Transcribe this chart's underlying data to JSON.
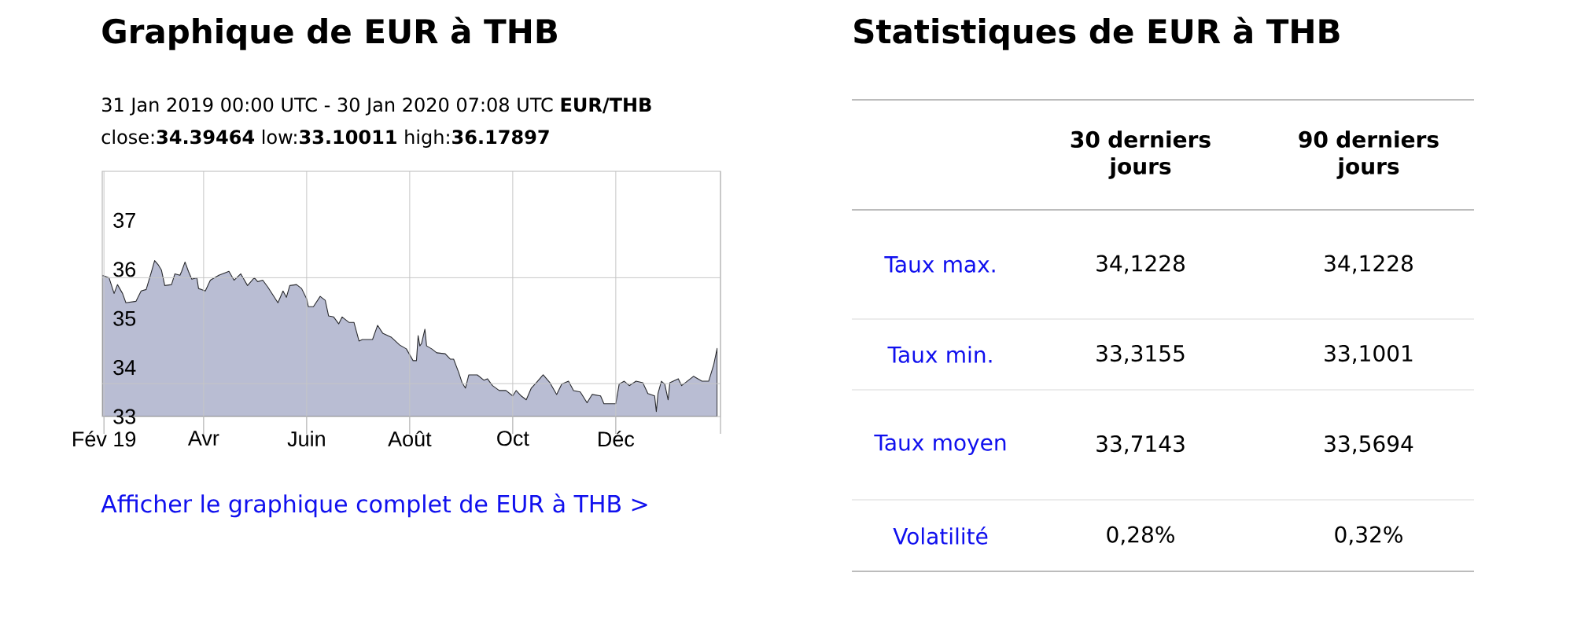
{
  "chart_data": [
    {
      "type": "area",
      "title": "Graphique de EUR à THB",
      "subtitle": "31 Jan 2019 00:00 UTC - 30 Jan 2020 07:08 UTC   **EUR/THB**",
      "annotations": [
        "close:**34.39464** low:**33.10011** high:**36.17897**",
        "Afficher le graphique complet de EUR à THB >"
      ],
      "x": [
        "2019-01-31",
        "2019-02-04",
        "2019-02-07",
        "2019-02-09",
        "2019-02-12",
        "2019-02-14",
        "2019-02-20",
        "2019-02-23",
        "2019-02-26",
        "2019-03-01",
        "2019-03-03",
        "2019-03-05",
        "2019-03-07",
        "2019-03-09",
        "2019-03-13",
        "2019-03-15",
        "2019-03-18",
        "2019-03-19",
        "2019-03-21",
        "2019-03-23",
        "2019-03-25",
        "2019-03-28",
        "2019-03-29",
        "2019-04-02",
        "2019-04-05",
        "2019-04-10",
        "2019-04-16",
        "2019-04-19",
        "2019-04-23",
        "2019-04-27",
        "2019-05-01",
        "2019-05-03",
        "2019-05-06",
        "2019-05-09",
        "2019-05-12",
        "2019-05-15",
        "2019-05-18",
        "2019-05-20",
        "2019-05-22",
        "2019-05-26",
        "2019-05-29",
        "2019-06-01",
        "2019-06-02",
        "2019-06-05",
        "2019-06-09",
        "2019-06-12",
        "2019-06-14",
        "2019-06-17",
        "2019-06-20",
        "2019-06-22",
        "2019-06-26",
        "2019-06-29",
        "2019-07-02",
        "2019-07-04",
        "2019-07-10",
        "2019-07-13",
        "2019-07-16",
        "2019-07-21",
        "2019-07-26",
        "2019-07-30",
        "2019-08-03",
        "2019-08-05",
        "2019-08-06",
        "2019-08-07",
        "2019-08-08",
        "2019-08-10",
        "2019-08-11",
        "2019-08-14",
        "2019-08-17",
        "2019-08-22",
        "2019-08-25",
        "2019-08-27",
        "2019-08-30",
        "2019-09-01",
        "2019-09-03",
        "2019-09-05",
        "2019-09-10",
        "2019-09-14",
        "2019-09-16",
        "2019-09-19",
        "2019-09-23",
        "2019-09-27",
        "2019-10-01",
        "2019-10-03",
        "2019-10-06",
        "2019-10-09",
        "2019-10-12",
        "2019-10-15",
        "2019-10-19",
        "2019-10-23",
        "2019-10-27",
        "2019-10-30",
        "2019-11-03",
        "2019-11-06",
        "2019-11-10",
        "2019-11-14",
        "2019-11-17",
        "2019-11-22",
        "2019-11-24",
        "2019-12-01",
        "2019-12-03",
        "2019-12-06",
        "2019-12-09",
        "2019-12-13",
        "2019-12-17",
        "2019-12-20",
        "2019-12-24",
        "2019-12-25",
        "2019-12-26",
        "2019-12-28",
        "2019-12-30",
        "2020-01-01",
        "2020-01-02",
        "2020-01-07",
        "2020-01-09",
        "2020-01-16",
        "2020-01-21",
        "2020-01-25",
        "2020-01-28",
        "2020-01-30"
      ],
      "series": [
        {
          "color": "#b9bdd3",
          "values": [
            35.88,
            35.83,
            35.51,
            35.69,
            35.51,
            35.32,
            35.35,
            35.56,
            35.59,
            35.94,
            36.18,
            36.1,
            35.99,
            35.67,
            35.69,
            35.91,
            35.88,
            35.96,
            36.15,
            35.96,
            35.8,
            35.83,
            35.61,
            35.56,
            35.78,
            35.88,
            35.96,
            35.78,
            35.91,
            35.67,
            35.83,
            35.75,
            35.78,
            35.64,
            35.48,
            35.32,
            35.56,
            35.43,
            35.67,
            35.69,
            35.61,
            35.4,
            35.24,
            35.24,
            35.45,
            35.37,
            35.05,
            35.03,
            34.89,
            35.03,
            34.92,
            34.92,
            34.54,
            34.57,
            34.57,
            34.86,
            34.7,
            34.62,
            34.46,
            34.38,
            34.14,
            34.14,
            34.65,
            34.44,
            34.49,
            34.78,
            34.44,
            34.38,
            34.3,
            34.28,
            34.17,
            34.17,
            33.9,
            33.69,
            33.58,
            33.85,
            33.85,
            33.74,
            33.77,
            33.63,
            33.53,
            33.53,
            33.42,
            33.53,
            33.42,
            33.34,
            33.58,
            33.69,
            33.85,
            33.69,
            33.45,
            33.66,
            33.72,
            33.53,
            33.5,
            33.28,
            33.45,
            33.42,
            33.26,
            33.26,
            33.66,
            33.72,
            33.63,
            33.72,
            33.69,
            33.47,
            33.42,
            33.1,
            33.47,
            33.72,
            33.66,
            33.34,
            33.69,
            33.77,
            33.63,
            33.82,
            33.72,
            33.72,
            34.06,
            34.39
          ]
        }
      ],
      "xlim": [
        "2019-01-31",
        "2020-02-01"
      ],
      "xticks": [
        {
          "value": "2019-02-01",
          "label": "Fév 19"
        },
        {
          "value": "2019-04-01",
          "label": "Avr"
        },
        {
          "value": "2019-06-01",
          "label": "Juin"
        },
        {
          "value": "2019-08-01",
          "label": "Août"
        },
        {
          "value": "2019-10-01",
          "label": "Oct"
        },
        {
          "value": "2019-12-01",
          "label": "Déc"
        },
        {
          "value": "2020-02-01",
          "label": null
        }
      ],
      "ylim": [
        33,
        38
      ],
      "yticks": [
        33,
        34,
        35,
        36,
        37,
        {
          "value": 33.67,
          "label": null
        },
        {
          "value": 35.83,
          "label": null
        }
      ],
      "grid": true
    },
    {
      "type": "other",
      "title": "Statistiques de EUR à THB",
      "categories": [
        "30 derniers jours",
        "90 derniers jours"
      ],
      "y_categories": [
        "Taux max.",
        "Taux min.",
        "Taux moyen",
        "Volatilité"
      ],
      "cell_labels": [
        [
          "34,1228",
          "34,1228"
        ],
        [
          "33,3155",
          "33,1001"
        ],
        [
          "33,7143",
          "33,5694"
        ],
        [
          "0,28%",
          "0,32%"
        ]
      ]
    }
  ]
}
